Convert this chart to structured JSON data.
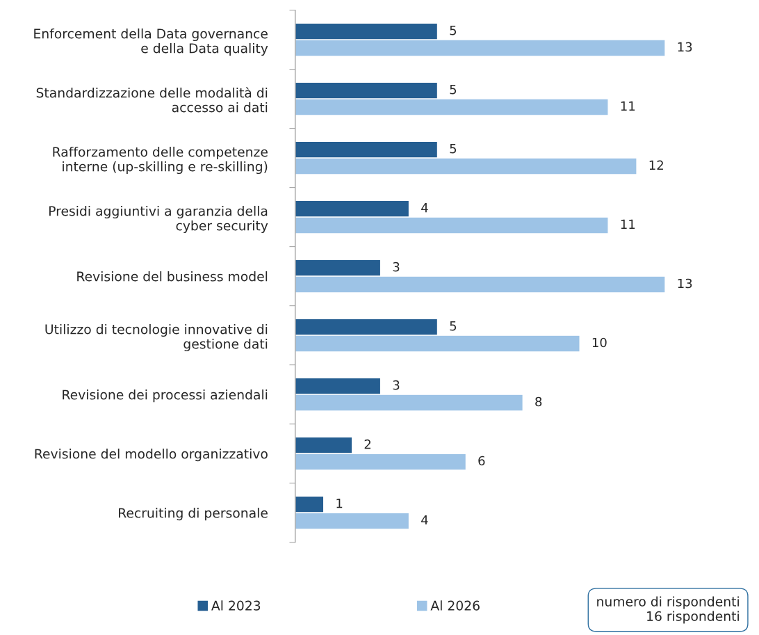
{
  "chart_data": {
    "type": "bar",
    "orientation": "horizontal",
    "categories": [
      "Enforcement della Data governance\ne della Data quality",
      "Standardizzazione delle modalità di\naccesso ai dati",
      "Rafforzamento delle competenze\ninterne (up-skilling e re-skilling)",
      "Presidi aggiuntivi a garanzia della\ncyber security",
      "Revisione del business model",
      "Utilizzo di tecnologie innovative di\ngestione dati",
      "Revisione dei processi aziendali",
      "Revisione del modello organizzativo",
      "Recruiting di personale"
    ],
    "series": [
      {
        "name": "Al 2023",
        "color": "#255e91",
        "values": [
          5,
          5,
          5,
          4,
          3,
          5,
          3,
          2,
          1
        ]
      },
      {
        "name": "Al 2026",
        "color": "#9dc3e6",
        "values": [
          13,
          11,
          12,
          11,
          13,
          10,
          8,
          6,
          4
        ]
      }
    ],
    "data_labels": true,
    "legend": "bottom",
    "grid": false,
    "tick_labels": "y",
    "annotations": [
      "numero di rispondenti\n16 rispondenti"
    ]
  }
}
